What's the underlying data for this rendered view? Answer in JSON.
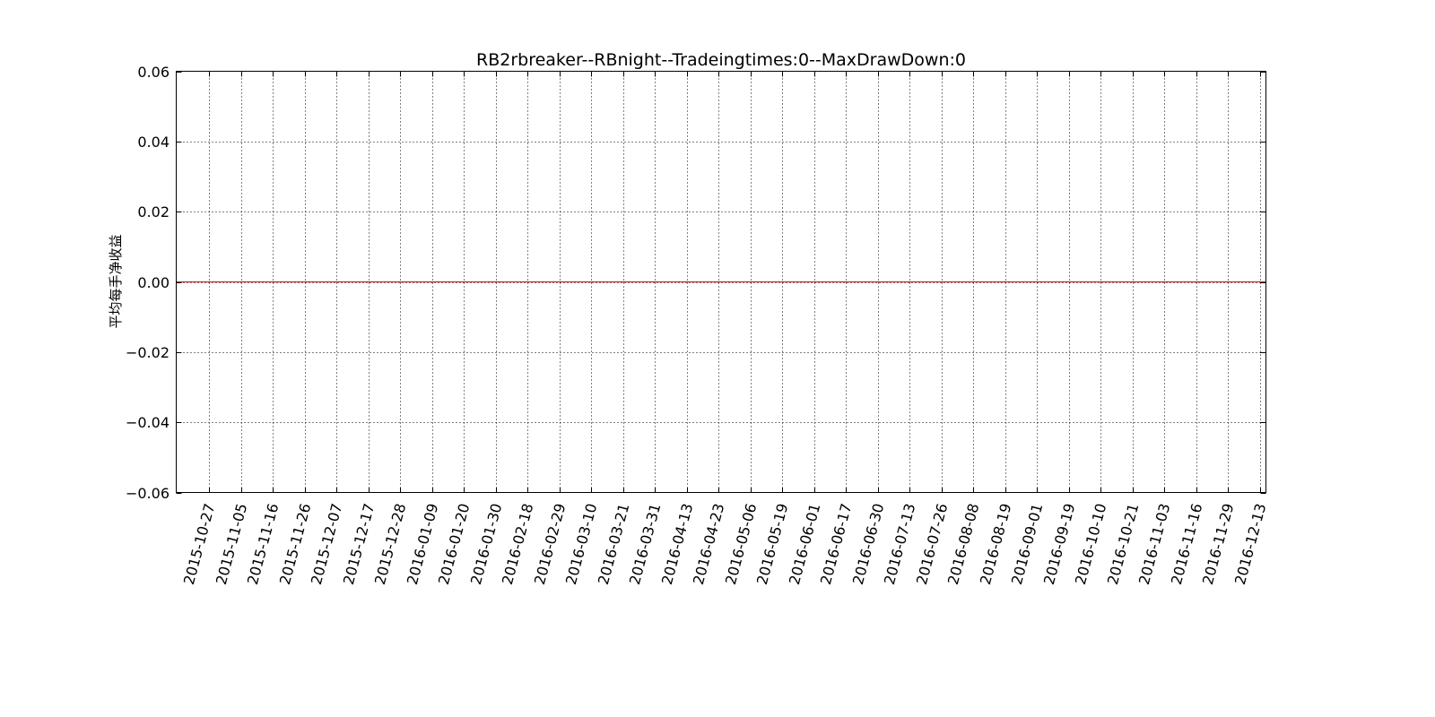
{
  "chart_data": {
    "type": "line",
    "title": "RB2rbreaker--RBnight--Tradeingtimes:0--MaxDrawDown:0",
    "xlabel": "",
    "ylabel": "平均每手净收益",
    "ylim": [
      -0.06,
      0.06
    ],
    "yticks": [
      0.06,
      0.04,
      0.02,
      0.0,
      -0.02,
      -0.04,
      -0.06
    ],
    "ytick_labels": [
      "0.06",
      "0.04",
      "0.02",
      "0.00",
      "−0.02",
      "−0.04",
      "−0.06"
    ],
    "xticks": [
      "2015-10-27",
      "2015-11-05",
      "2015-11-16",
      "2015-11-26",
      "2015-12-07",
      "2015-12-17",
      "2015-12-28",
      "2016-01-09",
      "2016-01-20",
      "2016-01-30",
      "2016-02-18",
      "2016-02-29",
      "2016-03-10",
      "2016-03-21",
      "2016-03-31",
      "2016-04-13",
      "2016-04-23",
      "2016-05-06",
      "2016-05-19",
      "2016-06-01",
      "2016-06-17",
      "2016-06-30",
      "2016-07-13",
      "2016-07-26",
      "2016-08-08",
      "2016-08-19",
      "2016-09-01",
      "2016-09-19",
      "2016-10-10",
      "2016-10-21",
      "2016-11-03",
      "2016-11-16",
      "2016-11-29",
      "2016-12-13"
    ],
    "grid": true,
    "series": [
      {
        "color": "#d62728",
        "x": [
          "2015-10-27",
          "2016-12-13"
        ],
        "values": [
          0,
          0
        ]
      }
    ]
  }
}
